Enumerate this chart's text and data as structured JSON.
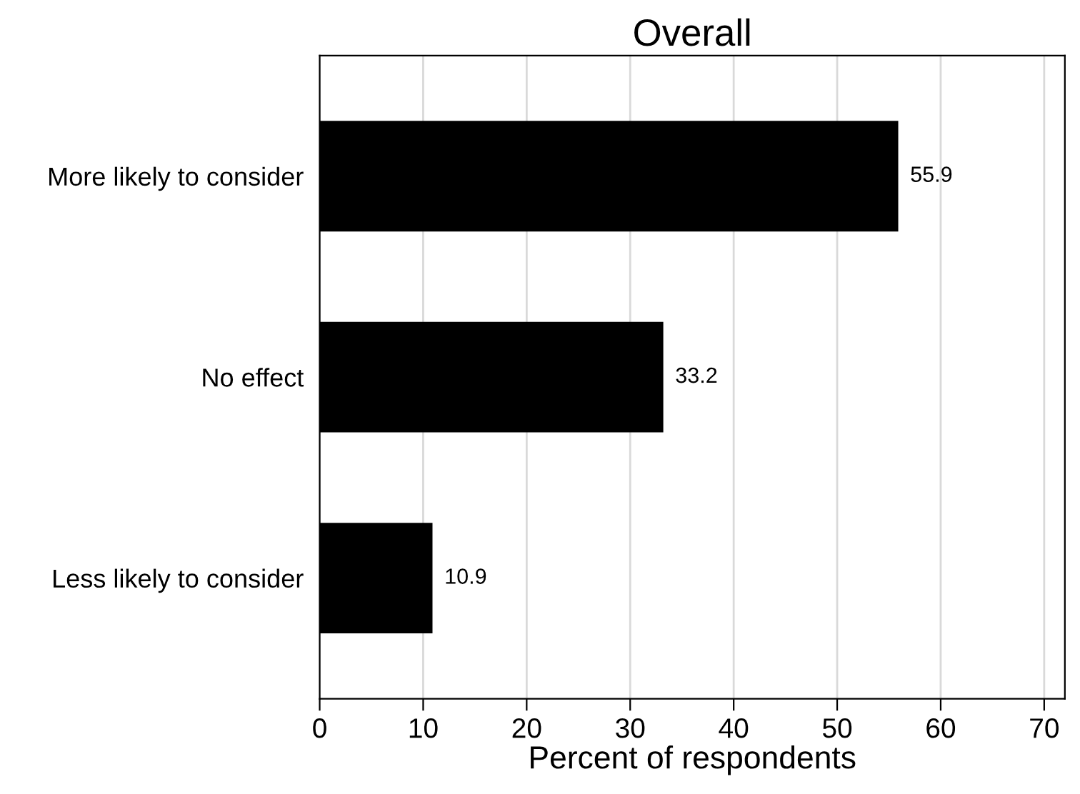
{
  "chart_data": {
    "type": "bar",
    "orientation": "horizontal",
    "title": "Overall",
    "xlabel": "Percent of respondents",
    "categories": [
      "More likely to consider",
      "No effect",
      "Less likely to consider"
    ],
    "values": [
      55.9,
      33.2,
      10.9
    ],
    "color": "#000000",
    "data_labels": true,
    "xlim": [
      0,
      72
    ],
    "xticks": [
      0,
      10,
      20,
      30,
      40,
      50,
      60,
      70
    ],
    "grid": "x",
    "legend": false
  }
}
